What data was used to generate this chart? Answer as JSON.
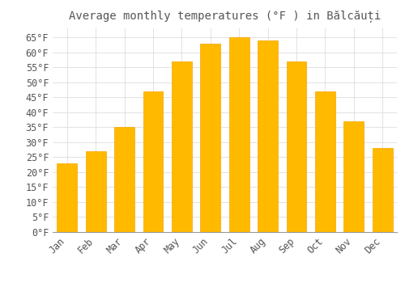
{
  "title": "Average monthly temperatures (°F ) in Bălcăuți",
  "months": [
    "Jan",
    "Feb",
    "Mar",
    "Apr",
    "May",
    "Jun",
    "Jul",
    "Aug",
    "Sep",
    "Oct",
    "Nov",
    "Dec"
  ],
  "values": [
    23,
    27,
    35,
    47,
    57,
    63,
    65,
    64,
    57,
    47,
    37,
    28
  ],
  "bar_color": "#FFBA00",
  "bar_edge_color": "#F5A500",
  "background_color": "#FFFFFF",
  "grid_color": "#DDDDDD",
  "text_color": "#555555",
  "ylim": [
    0,
    68
  ],
  "yticks": [
    0,
    5,
    10,
    15,
    20,
    25,
    30,
    35,
    40,
    45,
    50,
    55,
    60,
    65
  ],
  "title_fontsize": 10,
  "tick_fontsize": 8.5
}
